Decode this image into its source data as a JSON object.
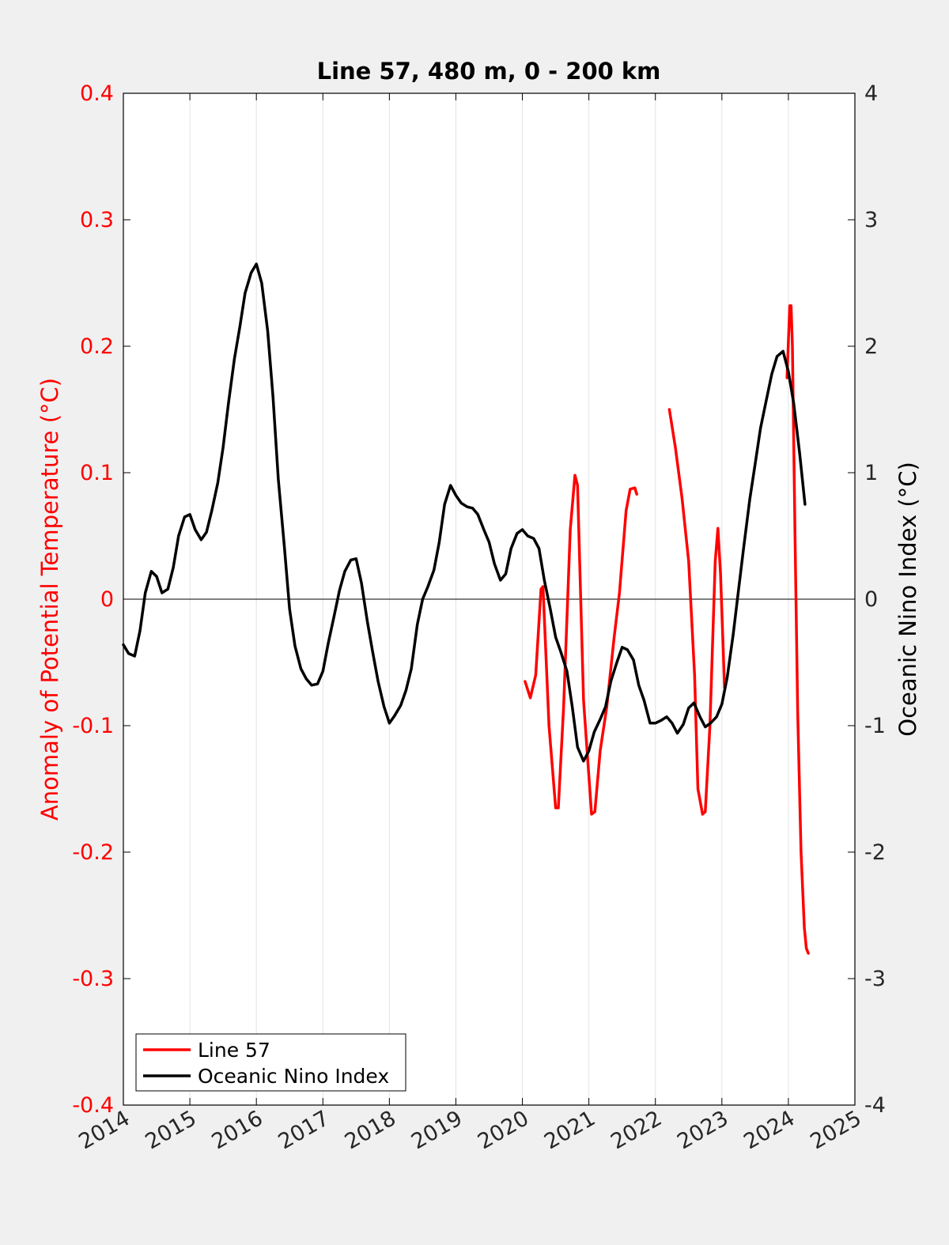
{
  "chart_data": {
    "type": "line",
    "title": "Line 57, 480 m, 0 - 200 km",
    "xlabel": "",
    "ylabel_left": "Anomaly of Potential Temperature (°C)",
    "ylabel_right": "Oceanic Nino Index (°C)",
    "xlim": [
      2014,
      2025
    ],
    "ylim_left": [
      -0.4,
      0.4
    ],
    "ylim_right": [
      -4,
      4
    ],
    "x_ticks": [
      "2014",
      "2015",
      "2016",
      "2017",
      "2018",
      "2019",
      "2020",
      "2021",
      "2022",
      "2023",
      "2024",
      "2025"
    ],
    "y_ticks_left": [
      "-0.4",
      "-0.3",
      "-0.2",
      "-0.1",
      "0",
      "0.1",
      "0.2",
      "0.3",
      "0.4"
    ],
    "y_ticks_right": [
      "-4",
      "-3",
      "-2",
      "-1",
      "0",
      "1",
      "2",
      "3",
      "4"
    ],
    "grid": "vertical",
    "legend_position": "bottom-left",
    "colors": {
      "left_axis": "#ff0000",
      "line57": "#ff0000",
      "oni": "#000000",
      "background": "#f0f0f0",
      "plot_area": "#ffffff"
    },
    "series": [
      {
        "name": "Line 57",
        "axis": "left",
        "color": "#ff0000",
        "segments": [
          {
            "x": [
              2020.04,
              2020.12,
              2020.2,
              2020.28,
              2020.31,
              2020.4,
              2020.5,
              2020.54,
              2020.62,
              2020.72,
              2020.79,
              2020.83,
              2020.92,
              2021.04,
              2021.09,
              2021.17,
              2021.27,
              2021.38,
              2021.46,
              2021.56,
              2021.62,
              2021.69,
              2021.72
            ],
            "y": [
              -0.065,
              -0.078,
              -0.06,
              0.008,
              0.01,
              -0.1,
              -0.165,
              -0.165,
              -0.085,
              0.055,
              0.098,
              0.09,
              -0.08,
              -0.17,
              -0.168,
              -0.12,
              -0.085,
              -0.03,
              0.005,
              0.07,
              0.087,
              0.088,
              0.083
            ]
          },
          {
            "x": [
              2022.21,
              2022.3,
              2022.4,
              2022.5,
              2022.59,
              2022.64,
              2022.71,
              2022.75,
              2022.82,
              2022.9,
              2022.94,
              2022.98,
              2023.04
            ],
            "y": [
              0.15,
              0.12,
              0.08,
              0.03,
              -0.06,
              -0.15,
              -0.17,
              -0.168,
              -0.1,
              0.03,
              0.056,
              0.02,
              -0.07
            ]
          },
          {
            "x": [
              2023.98,
              2024.02,
              2024.04,
              2024.06,
              2024.1,
              2024.14,
              2024.19,
              2024.24,
              2024.27,
              2024.3
            ],
            "y": [
              0.175,
              0.232,
              0.232,
              0.2,
              0.05,
              -0.09,
              -0.2,
              -0.26,
              -0.276,
              -0.28
            ]
          }
        ]
      },
      {
        "name": "Oceanic Nino Index",
        "axis": "right",
        "color": "#000000",
        "x": [
          2014.0,
          2014.08,
          2014.17,
          2014.25,
          2014.33,
          2014.42,
          2014.5,
          2014.58,
          2014.67,
          2014.75,
          2014.83,
          2014.92,
          2015.0,
          2015.08,
          2015.17,
          2015.25,
          2015.33,
          2015.42,
          2015.5,
          2015.58,
          2015.67,
          2015.75,
          2015.83,
          2015.92,
          2016.0,
          2016.08,
          2016.17,
          2016.25,
          2016.33,
          2016.42,
          2016.5,
          2016.58,
          2016.67,
          2016.75,
          2016.83,
          2016.92,
          2017.0,
          2017.08,
          2017.17,
          2017.25,
          2017.33,
          2017.42,
          2017.5,
          2017.58,
          2017.67,
          2017.75,
          2017.83,
          2017.92,
          2018.0,
          2018.08,
          2018.17,
          2018.25,
          2018.33,
          2018.42,
          2018.5,
          2018.58,
          2018.67,
          2018.75,
          2018.83,
          2018.92,
          2019.0,
          2019.08,
          2019.17,
          2019.25,
          2019.33,
          2019.42,
          2019.5,
          2019.58,
          2019.67,
          2019.75,
          2019.83,
          2019.92,
          2020.0,
          2020.08,
          2020.17,
          2020.25,
          2020.33,
          2020.42,
          2020.5,
          2020.58,
          2020.67,
          2020.75,
          2020.83,
          2020.92,
          2021.0,
          2021.08,
          2021.17,
          2021.25,
          2021.33,
          2021.42,
          2021.5,
          2021.58,
          2021.67,
          2021.75,
          2021.83,
          2021.92,
          2022.0,
          2022.08,
          2022.17,
          2022.25,
          2022.33,
          2022.42,
          2022.5,
          2022.58,
          2022.67,
          2022.75,
          2022.83,
          2022.92,
          2023.0,
          2023.08,
          2023.17,
          2023.25,
          2023.33,
          2023.42,
          2023.5,
          2023.58,
          2023.67,
          2023.75,
          2023.83,
          2023.92,
          2024.0,
          2024.08,
          2024.17,
          2024.25
        ],
        "y": [
          -0.36,
          -0.43,
          -0.45,
          -0.25,
          0.05,
          0.22,
          0.18,
          0.05,
          0.08,
          0.25,
          0.5,
          0.65,
          0.67,
          0.55,
          0.47,
          0.53,
          0.7,
          0.92,
          1.2,
          1.55,
          1.9,
          2.15,
          2.42,
          2.58,
          2.65,
          2.5,
          2.12,
          1.6,
          0.95,
          0.42,
          -0.08,
          -0.37,
          -0.55,
          -0.63,
          -0.68,
          -0.67,
          -0.57,
          -0.35,
          -0.13,
          0.07,
          0.22,
          0.31,
          0.32,
          0.13,
          -0.18,
          -0.42,
          -0.65,
          -0.85,
          -0.98,
          -0.92,
          -0.84,
          -0.72,
          -0.55,
          -0.2,
          0.0,
          0.1,
          0.23,
          0.45,
          0.75,
          0.9,
          0.82,
          0.76,
          0.73,
          0.72,
          0.67,
          0.55,
          0.45,
          0.28,
          0.15,
          0.2,
          0.4,
          0.52,
          0.55,
          0.5,
          0.48,
          0.4,
          0.15,
          -0.08,
          -0.3,
          -0.42,
          -0.57,
          -0.85,
          -1.17,
          -1.28,
          -1.2,
          -1.05,
          -0.95,
          -0.85,
          -0.65,
          -0.5,
          -0.38,
          -0.4,
          -0.48,
          -0.68,
          -0.8,
          -0.98,
          -0.98,
          -0.96,
          -0.93,
          -0.98,
          -1.06,
          -0.99,
          -0.86,
          -0.82,
          -0.93,
          -1.01,
          -0.98,
          -0.93,
          -0.83,
          -0.62,
          -0.28,
          0.07,
          0.42,
          0.79,
          1.07,
          1.35,
          1.58,
          1.78,
          1.92,
          1.96,
          1.8,
          1.55,
          1.15,
          0.75
        ]
      }
    ]
  }
}
